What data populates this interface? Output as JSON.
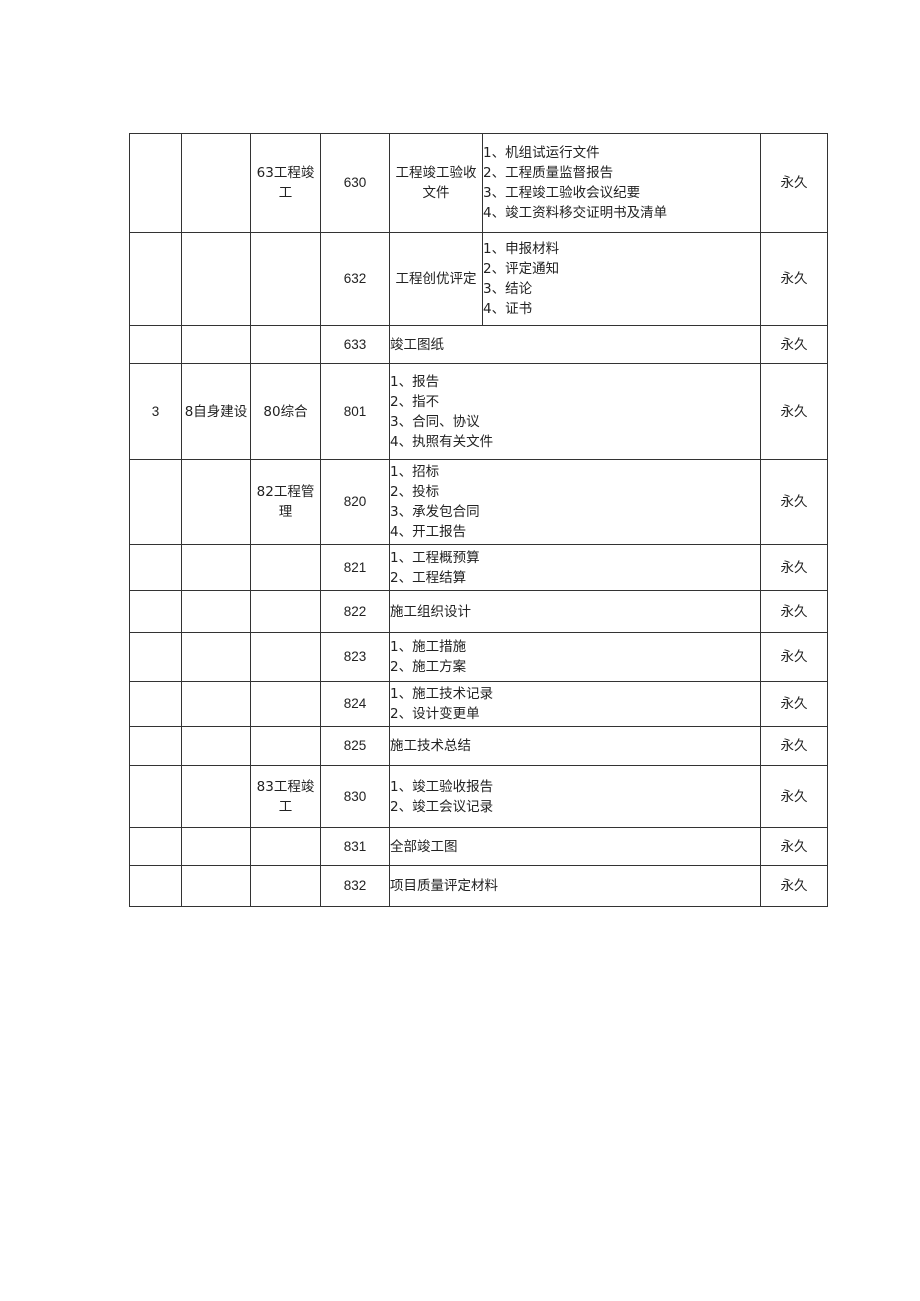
{
  "table": {
    "rows": [
      {
        "seq": "",
        "category": "",
        "subcategory": "63工程竣工",
        "code": "630",
        "title": "工程竣工验收文件",
        "items": [
          "1、机组试运行文件",
          "2、工程质量监督报告",
          "3、工程竣工验收会议纪要",
          "4、竣工资料移交证明书及清单"
        ],
        "retention": "永久"
      },
      {
        "seq": "",
        "category": "",
        "subcategory": "",
        "code": "632",
        "title": "工程创优评定",
        "items": [
          "1、申报材料",
          "2、评定通知",
          "3、结论",
          "4、证书"
        ],
        "retention": "永久"
      },
      {
        "seq": "",
        "category": "",
        "subcategory": "",
        "code": "633",
        "items": [
          "竣工图纸"
        ],
        "retention": "永久"
      },
      {
        "seq": "3",
        "category": "8自身建设",
        "subcategory": "80综合",
        "code": "801",
        "items": [
          "1、报告",
          "2、指不",
          "3、合同、协议",
          "4、执照有关文件"
        ],
        "retention": "永久"
      },
      {
        "seq": "",
        "category": "",
        "subcategory": "82工程管理",
        "code": "820",
        "items": [
          "1、招标",
          "2、投标",
          "3、承发包合同",
          "4、开工报告"
        ],
        "retention": "永久"
      },
      {
        "seq": "",
        "category": "",
        "subcategory": "",
        "code": "821",
        "items": [
          "1、工程概预算",
          "2、工程结算"
        ],
        "retention": "永久"
      },
      {
        "seq": "",
        "category": "",
        "subcategory": "",
        "code": "822",
        "items": [
          "施工组织设计"
        ],
        "retention": "永久"
      },
      {
        "seq": "",
        "category": "",
        "subcategory": "",
        "code": "823",
        "items": [
          "1、施工措施",
          "2、施工方案"
        ],
        "retention": "永久"
      },
      {
        "seq": "",
        "category": "",
        "subcategory": "",
        "code": "824",
        "items": [
          "1、施工技术记录",
          "2、设计变更单"
        ],
        "retention": "永久"
      },
      {
        "seq": "",
        "category": "",
        "subcategory": "",
        "code": "825",
        "items": [
          "施工技术总结"
        ],
        "retention": "永久"
      },
      {
        "seq": "",
        "category": "",
        "subcategory": "83工程竣工",
        "code": "830",
        "items": [
          "1、竣工验收报告",
          "2、竣工会议记录"
        ],
        "retention": "永久"
      },
      {
        "seq": "",
        "category": "",
        "subcategory": "",
        "code": "831",
        "items": [
          "全部竣工图"
        ],
        "retention": "永久"
      },
      {
        "seq": "",
        "category": "",
        "subcategory": "",
        "code": "832",
        "items": [
          "项目质量评定材料"
        ],
        "retention": "永久"
      }
    ]
  }
}
